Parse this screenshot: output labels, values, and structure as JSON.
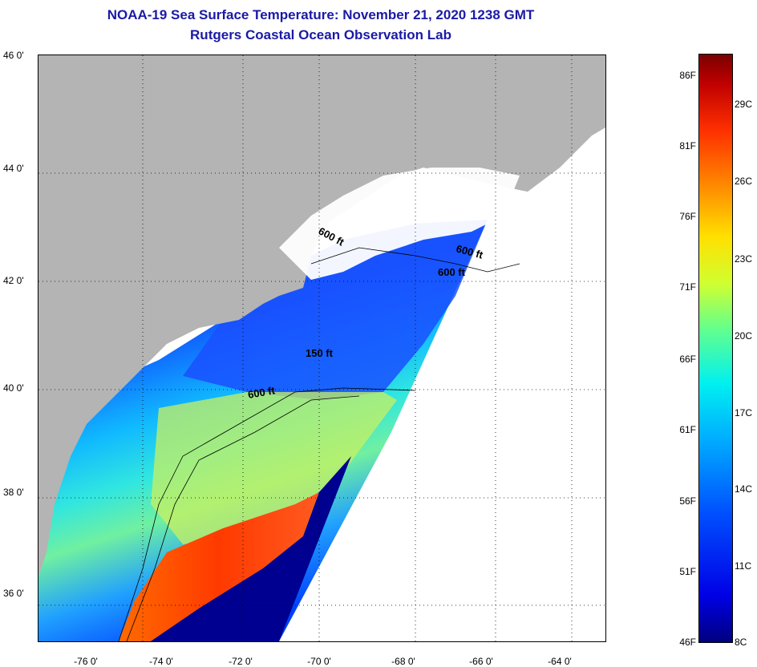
{
  "title": {
    "line1": "NOAA-19 Sea Surface Temperature:  November 21, 2020 1238 GMT",
    "line2": "Rutgers Coastal Ocean Observation Lab"
  },
  "map": {
    "lat_labels": [
      "46 0'",
      "44 0'",
      "42 0'",
      "40 0'",
      "38 0'",
      "36 0'"
    ],
    "lon_labels": [
      "-76 0'",
      "-74 0'",
      "-72 0'",
      "-70 0'",
      "-68 0'",
      "-66 0'",
      "-64 0'"
    ],
    "contours": [
      "600 ft",
      "600 ft",
      "600 ft",
      "150 ft",
      "600 ft"
    ]
  },
  "colorbar": {
    "f_labels": [
      "86F",
      "81F",
      "76F",
      "71F",
      "66F",
      "61F",
      "56F",
      "51F",
      "46F"
    ],
    "c_labels": [
      "29C",
      "26C",
      "23C",
      "20C",
      "17C",
      "14C",
      "11C",
      "8C"
    ]
  },
  "colors": {
    "title": "#1a1aa6",
    "land": "#b4b4b4",
    "cloud": "#ffffff",
    "warm": "#ff3a00",
    "cold": "#000080"
  }
}
